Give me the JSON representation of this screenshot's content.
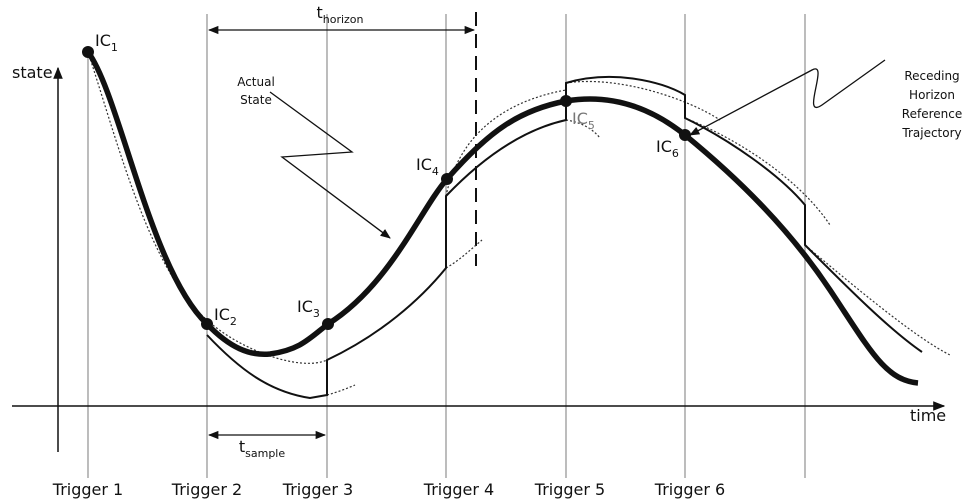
{
  "axes": {
    "y_label": "state",
    "x_label": "time"
  },
  "ic_labels": [
    {
      "text": "IC",
      "sub": "1"
    },
    {
      "text": "IC",
      "sub": "2"
    },
    {
      "text": "IC",
      "sub": "3"
    },
    {
      "text": "IC",
      "sub": "4"
    },
    {
      "text": "IC",
      "sub": "5"
    },
    {
      "text": "IC",
      "sub": "6"
    }
  ],
  "t_horizon": {
    "text": "t",
    "sub": "horizon"
  },
  "t_sample": {
    "text": "t",
    "sub": "sample"
  },
  "triggers": [
    "Trigger 1",
    "Trigger 2",
    "Trigger 3",
    "Trigger 4",
    "Trigger 5",
    "Trigger 6"
  ],
  "annotations": {
    "actual_state": [
      "Actual",
      "State"
    ],
    "reference": [
      "Receding",
      "Horizon",
      "Reference",
      "Trajectory"
    ]
  }
}
